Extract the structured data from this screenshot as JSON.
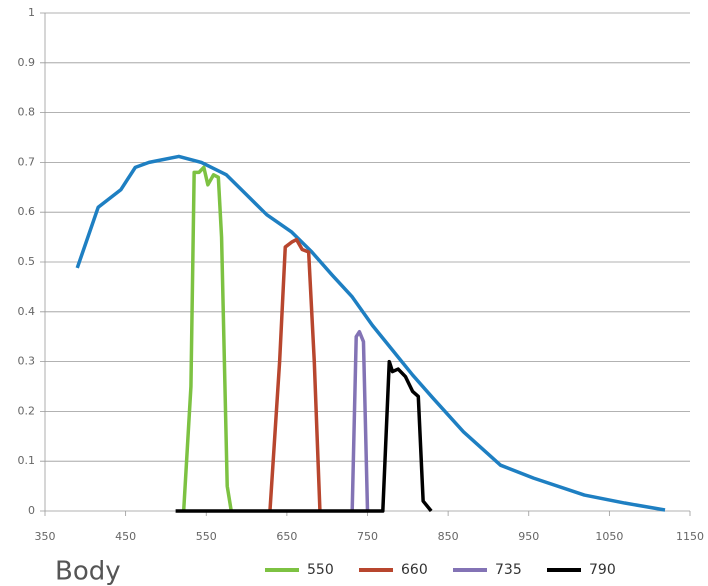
{
  "chart_data": {
    "type": "line",
    "annotation": "Body",
    "xlim": [
      350,
      1150
    ],
    "xticks": [
      350,
      450,
      550,
      650,
      750,
      850,
      950,
      1050,
      1150
    ],
    "ylim": [
      0,
      1
    ],
    "yticks": [
      0,
      0.1,
      0.2,
      0.3,
      0.4,
      0.5,
      0.6,
      0.7,
      0.8,
      0.9,
      1
    ],
    "grid": true,
    "legend": "bottom",
    "series": [
      {
        "color": "#1e7fc2",
        "x": [
          390,
          416,
          444,
          462,
          479,
          516,
          544,
          575,
          600,
          625,
          656,
          681,
          706,
          731,
          756,
          781,
          806,
          831,
          869,
          915,
          956,
          1019,
          1069,
          1119
        ],
        "values": [
          0.488,
          0.61,
          0.645,
          0.69,
          0.7,
          0.712,
          0.7,
          0.675,
          0.635,
          0.595,
          0.56,
          0.52,
          0.474,
          0.43,
          0.373,
          0.323,
          0.273,
          0.227,
          0.159,
          0.092,
          0.066,
          0.032,
          0.016,
          0.002
        ]
      },
      {
        "name": "550",
        "color": "#7dc242",
        "x": [
          522,
          531,
          535,
          541,
          547,
          552,
          559,
          565,
          569,
          576,
          581
        ],
        "values": [
          0,
          0.25,
          0.68,
          0.68,
          0.69,
          0.655,
          0.675,
          0.67,
          0.55,
          0.05,
          0
        ]
      },
      {
        "name": "660",
        "color": "#b8462e",
        "x": [
          629,
          641,
          648,
          656,
          662,
          669,
          677,
          684,
          691
        ],
        "values": [
          0,
          0.3,
          0.53,
          0.54,
          0.545,
          0.525,
          0.52,
          0.3,
          0
        ]
      },
      {
        "name": "735",
        "color": "#8373b5",
        "x": [
          731,
          736,
          740,
          745,
          750
        ],
        "values": [
          0,
          0.35,
          0.36,
          0.34,
          0
        ]
      },
      {
        "name": "790",
        "color": "#000000",
        "x": [
          512,
          769,
          777,
          781,
          788,
          797,
          806,
          813,
          819,
          829
        ],
        "values": [
          0,
          0,
          0.3,
          0.28,
          0.285,
          0.27,
          0.24,
          0.23,
          0.02,
          0
        ]
      }
    ]
  }
}
